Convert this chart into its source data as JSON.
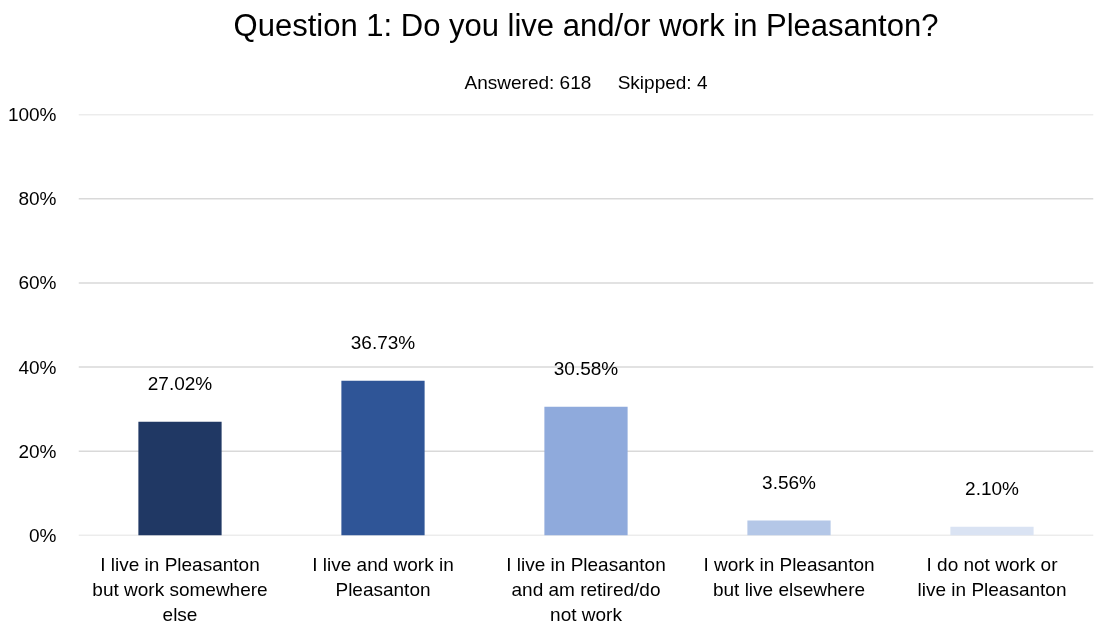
{
  "chart_data": {
    "type": "bar",
    "title": "Question 1: Do you live and/or work in Pleasanton?",
    "subtitle": "Answered: 618     Skipped: 4",
    "categories": [
      "I live in Pleasanton but work somewhere else",
      "I live and work in Pleasanton",
      "I live in Pleasanton and am retired/do not work",
      "I work in Pleasanton but live elsewhere",
      "I do not work or live in Pleasanton"
    ],
    "values": [
      27.02,
      36.73,
      30.58,
      3.56,
      2.1
    ],
    "colors": [
      "#203864",
      "#2f5597",
      "#8faadc",
      "#b4c7e7",
      "#dae3f3"
    ],
    "value_labels": [
      "27.02%",
      "36.73%",
      "30.58%",
      "3.56%",
      "2.10%"
    ],
    "ylim": [
      0,
      100
    ],
    "yticks": [
      {
        "value": 0,
        "label": "0%"
      },
      {
        "value": 20,
        "label": "20%"
      },
      {
        "value": 40,
        "label": "40%"
      },
      {
        "value": 60,
        "label": "60%"
      },
      {
        "value": 80,
        "label": "80%"
      },
      {
        "value": 100,
        "label": "100%"
      }
    ],
    "grid": "y"
  }
}
